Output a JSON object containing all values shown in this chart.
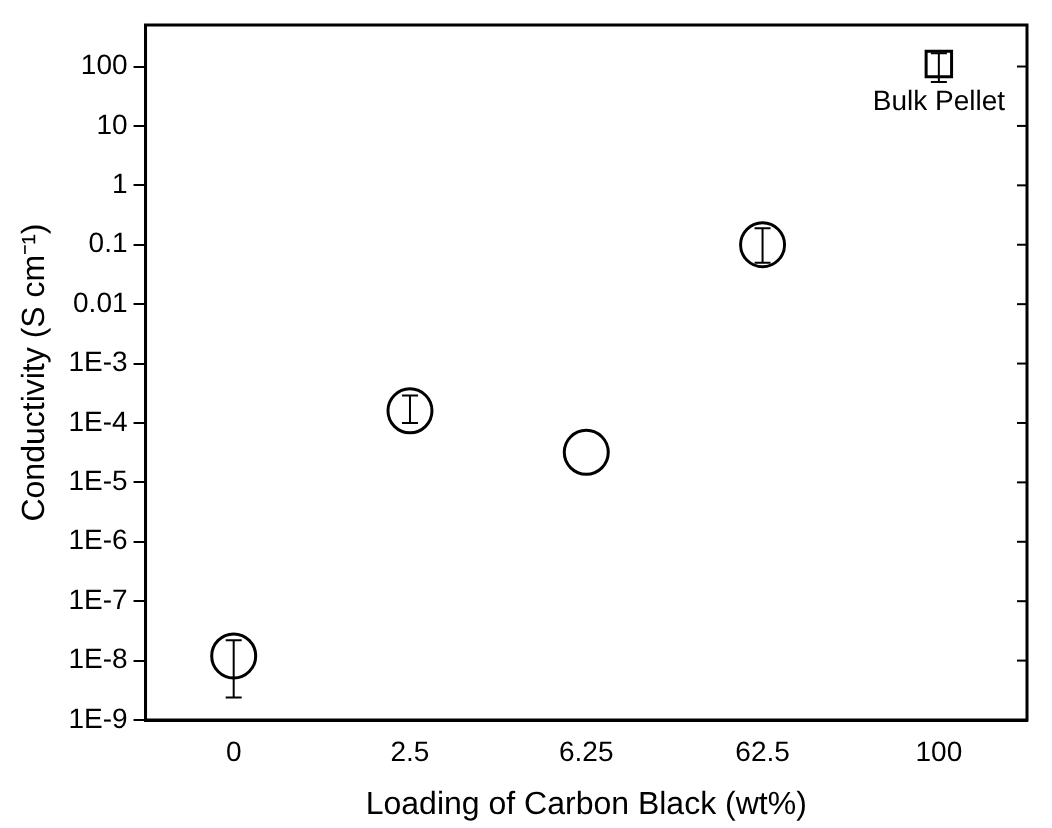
{
  "chart_data": {
    "type": "scatter",
    "xlabel": "Loading of Carbon Black (wt%)",
    "ylabel": "Conductivity (S cm⁻¹)",
    "categories": [
      "0",
      "2.5",
      "6.25",
      "62.5",
      "100"
    ],
    "series": [
      {
        "color": "#000000",
        "marker": "circle",
        "values": [
          1.2e-08,
          0.00016,
          3.2e-05,
          0.1,
          null
        ],
        "errors": [
          [
            2.4e-09,
            2.2e-08
          ],
          [
            0.0001,
            0.00029
          ],
          null,
          [
            0.05,
            0.19
          ],
          null
        ]
      },
      {
        "color": "#000000",
        "marker": "square",
        "values": [
          null,
          null,
          null,
          null,
          110
        ],
        "errors": [
          null,
          null,
          null,
          null,
          [
            55,
            168
          ]
        ]
      }
    ],
    "log": "y",
    "ylim": [
      1e-09,
      500
    ],
    "yticks": [
      {
        "value": 1e-09,
        "label": "1E-9"
      },
      {
        "value": 1e-08,
        "label": "1E-8"
      },
      {
        "value": 1e-07,
        "label": "1E-7"
      },
      {
        "value": 1e-06,
        "label": "1E-6"
      },
      {
        "value": 1e-05,
        "label": "1E-5"
      },
      {
        "value": 0.0001,
        "label": "1E-4"
      },
      {
        "value": 0.001,
        "label": "1E-3"
      },
      0.01,
      0.1,
      1,
      10,
      100
    ],
    "annotations": [
      {
        "text": "Bulk Pellet",
        "x": "100",
        "y": 110
      }
    ],
    "grid": false,
    "legend": false
  }
}
